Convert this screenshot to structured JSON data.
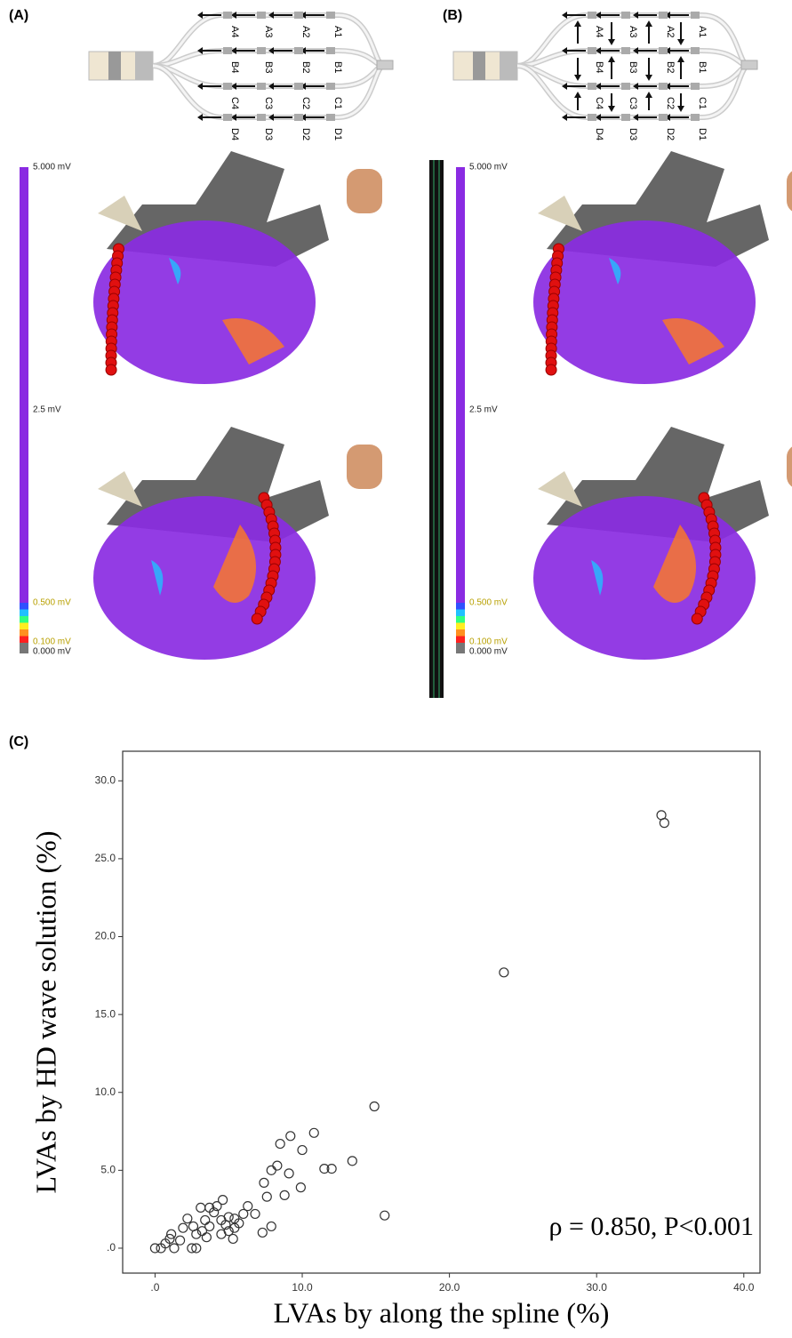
{
  "panels": {
    "a": "(A)",
    "b": "(B)",
    "c": "(C)"
  },
  "electrodes": [
    [
      "A1",
      "A2",
      "A3",
      "A4"
    ],
    [
      "B1",
      "B2",
      "B3",
      "B4"
    ],
    [
      "C1",
      "C2",
      "C3",
      "C4"
    ],
    [
      "D1",
      "D2",
      "D3",
      "D4"
    ]
  ],
  "scale_labels": [
    "5.000 mV",
    "2.5 mV",
    "0.500 mV",
    "0.100 mV",
    "0.000 mV"
  ],
  "chart_data": {
    "type": "scatter",
    "xlabel": "LVAs by along the spline (%)",
    "ylabel": "LVAs by HD wave solution (%)",
    "annotation": "ρ = 0.850, P<0.001",
    "xlim": [
      -2.2,
      41.1
    ],
    "ylim": [
      -1.6,
      31.9
    ],
    "xticks": [
      {
        "value": 0,
        "label": ".0"
      },
      {
        "value": 10,
        "label": "10.0"
      },
      {
        "value": 20,
        "label": "20.0"
      },
      {
        "value": 30,
        "label": "30.0"
      },
      {
        "value": 40,
        "label": "40.0"
      }
    ],
    "yticks": [
      {
        "value": 0,
        "label": ".0"
      },
      {
        "value": 5,
        "label": "5.0"
      },
      {
        "value": 10,
        "label": "10.0"
      },
      {
        "value": 15,
        "label": "15.0"
      },
      {
        "value": 20,
        "label": "20.0"
      },
      {
        "value": 25,
        "label": "25.0"
      },
      {
        "value": 30,
        "label": "30.0"
      }
    ],
    "marker_color": "#333333",
    "x": [
      34.4,
      34.6,
      23.7,
      14.9,
      10.8,
      9.2,
      10.0,
      8.5,
      13.4,
      12.0,
      11.5,
      8.3,
      7.9,
      9.1,
      7.4,
      9.9,
      8.8,
      7.6,
      15.6,
      7.9,
      7.3,
      0.0,
      0.4,
      0.7,
      1.0,
      1.3,
      1.1,
      1.9,
      2.2,
      2.6,
      2.8,
      2.5,
      2.8,
      3.1,
      3.4,
      3.5,
      3.7,
      4.0,
      4.2,
      4.6,
      4.5,
      4.5,
      4.8,
      5.0,
      5.3,
      5.4,
      5.7,
      6.0,
      5.4,
      6.3,
      6.8,
      5.0,
      3.2,
      1.7,
      3.7
    ],
    "y": [
      27.8,
      27.3,
      17.7,
      9.1,
      7.4,
      7.2,
      6.3,
      6.7,
      5.6,
      5.1,
      5.1,
      5.3,
      5.0,
      4.8,
      4.2,
      3.9,
      3.4,
      3.3,
      2.1,
      1.4,
      1.0,
      0.0,
      0.0,
      0.3,
      0.6,
      0.0,
      0.9,
      1.3,
      1.9,
      1.4,
      0.9,
      0.0,
      0.0,
      2.6,
      1.8,
      0.7,
      1.4,
      2.3,
      2.7,
      3.1,
      1.8,
      0.9,
      1.5,
      1.1,
      0.6,
      1.3,
      1.6,
      2.2,
      1.9,
      2.7,
      2.2,
      2.0,
      1.1,
      0.5,
      2.6
    ]
  }
}
